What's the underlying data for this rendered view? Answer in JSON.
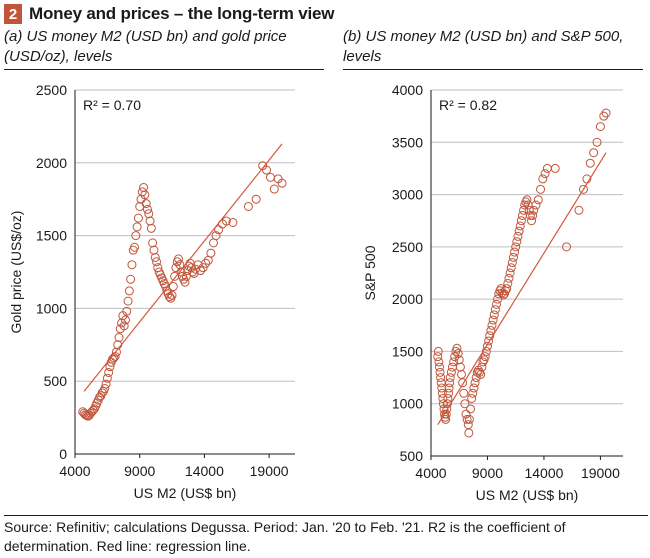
{
  "figure": {
    "number": "2",
    "title": "Money and prices – the long-term view",
    "source_note": "Source: Refinitiv; calculations Degussa. Period: Jan. '20 to Feb. '21. R2 is the coefficient of determination. Red line: regression line.",
    "colors": {
      "badge": "#c0553a",
      "marker": "#c0553a",
      "regression": "#d4583a",
      "grid": "#bfbfbf"
    }
  },
  "chart_data": [
    {
      "type": "scatter",
      "subtitle": "(a) US money M2 (USD bn) and gold price (USD/oz), levels",
      "xlabel": "US M2  (US$ bn)",
      "ylabel": "Gold price (US$/oz)",
      "xlim": [
        4000,
        21000
      ],
      "ylim": [
        0,
        2500
      ],
      "xticks": [
        "4000",
        "9000",
        "14000",
        "19000"
      ],
      "yticks": [
        "0",
        "500",
        "1000",
        "1500",
        "2000",
        "2500"
      ],
      "grid": "horizontal",
      "annotation": "R² = 0.70",
      "regression": [
        [
          4700,
          430
        ],
        [
          20000,
          2130
        ]
      ],
      "points": [
        [
          4600,
          290
        ],
        [
          4700,
          280
        ],
        [
          4800,
          270
        ],
        [
          4900,
          265
        ],
        [
          5000,
          260
        ],
        [
          5100,
          265
        ],
        [
          5200,
          280
        ],
        [
          5300,
          290
        ],
        [
          5400,
          300
        ],
        [
          5500,
          310
        ],
        [
          5600,
          330
        ],
        [
          5700,
          350
        ],
        [
          5800,
          370
        ],
        [
          5900,
          390
        ],
        [
          6000,
          400
        ],
        [
          6100,
          420
        ],
        [
          6200,
          430
        ],
        [
          6300,
          450
        ],
        [
          6400,
          480
        ],
        [
          6500,
          520
        ],
        [
          6600,
          560
        ],
        [
          6700,
          600
        ],
        [
          6800,
          630
        ],
        [
          6900,
          650
        ],
        [
          7000,
          660
        ],
        [
          7100,
          670
        ],
        [
          7200,
          700
        ],
        [
          7300,
          750
        ],
        [
          7400,
          800
        ],
        [
          7500,
          860
        ],
        [
          7600,
          900
        ],
        [
          7700,
          950
        ],
        [
          7800,
          880
        ],
        [
          7900,
          920
        ],
        [
          8000,
          980
        ],
        [
          8100,
          1050
        ],
        [
          8200,
          1120
        ],
        [
          8300,
          1200
        ],
        [
          8400,
          1300
        ],
        [
          8500,
          1400
        ],
        [
          8600,
          1420
        ],
        [
          8700,
          1500
        ],
        [
          8800,
          1560
        ],
        [
          8900,
          1620
        ],
        [
          9000,
          1700
        ],
        [
          9100,
          1750
        ],
        [
          9200,
          1800
        ],
        [
          9300,
          1830
        ],
        [
          9400,
          1780
        ],
        [
          9500,
          1720
        ],
        [
          9600,
          1680
        ],
        [
          9700,
          1650
        ],
        [
          9800,
          1600
        ],
        [
          9900,
          1550
        ],
        [
          10000,
          1450
        ],
        [
          10100,
          1400
        ],
        [
          10200,
          1350
        ],
        [
          10300,
          1320
        ],
        [
          10400,
          1280
        ],
        [
          10500,
          1250
        ],
        [
          10600,
          1230
        ],
        [
          10700,
          1210
        ],
        [
          10800,
          1190
        ],
        [
          10900,
          1170
        ],
        [
          11000,
          1150
        ],
        [
          11100,
          1120
        ],
        [
          11200,
          1100
        ],
        [
          11300,
          1080
        ],
        [
          11400,
          1070
        ],
        [
          11500,
          1090
        ],
        [
          11600,
          1150
        ],
        [
          11700,
          1220
        ],
        [
          11800,
          1280
        ],
        [
          11900,
          1320
        ],
        [
          12000,
          1340
        ],
        [
          12100,
          1300
        ],
        [
          12200,
          1250
        ],
        [
          12300,
          1220
        ],
        [
          12400,
          1200
        ],
        [
          12500,
          1180
        ],
        [
          12600,
          1220
        ],
        [
          12700,
          1260
        ],
        [
          12800,
          1290
        ],
        [
          12900,
          1310
        ],
        [
          13000,
          1280
        ],
        [
          13100,
          1250
        ],
        [
          13200,
          1240
        ],
        [
          13300,
          1270
        ],
        [
          13500,
          1300
        ],
        [
          13700,
          1260
        ],
        [
          13900,
          1280
        ],
        [
          14100,
          1310
        ],
        [
          14300,
          1330
        ],
        [
          14500,
          1380
        ],
        [
          14700,
          1450
        ],
        [
          14900,
          1500
        ],
        [
          15100,
          1540
        ],
        [
          15400,
          1580
        ],
        [
          15700,
          1600
        ],
        [
          16200,
          1590
        ],
        [
          17400,
          1700
        ],
        [
          18000,
          1750
        ],
        [
          18500,
          1980
        ],
        [
          18800,
          1950
        ],
        [
          19100,
          1900
        ],
        [
          19400,
          1820
        ],
        [
          19700,
          1890
        ],
        [
          20000,
          1860
        ]
      ]
    },
    {
      "type": "scatter",
      "subtitle": "(b) US money M2 (USD bn) and S&P 500, levels",
      "xlabel": "US M2  (US$ bn)",
      "ylabel": "S&P 500",
      "xlim": [
        4000,
        21000
      ],
      "ylim": [
        500,
        4000
      ],
      "xticks": [
        "4000",
        "9000",
        "14000",
        "19000"
      ],
      "yticks": [
        "500",
        "1000",
        "1500",
        "2000",
        "2500",
        "3000",
        "3500",
        "4000"
      ],
      "grid": "horizontal",
      "annotation": "R² = 0.82",
      "regression": [
        [
          4600,
          800
        ],
        [
          19500,
          3400
        ]
      ],
      "points": [
        [
          4600,
          1450
        ],
        [
          4650,
          1500
        ],
        [
          4700,
          1400
        ],
        [
          4750,
          1350
        ],
        [
          4800,
          1300
        ],
        [
          4850,
          1250
        ],
        [
          4900,
          1200
        ],
        [
          4950,
          1150
        ],
        [
          5000,
          1100
        ],
        [
          5050,
          1050
        ],
        [
          5100,
          1000
        ],
        [
          5150,
          950
        ],
        [
          5200,
          900
        ],
        [
          5250,
          870
        ],
        [
          5300,
          850
        ],
        [
          5350,
          900
        ],
        [
          5400,
          950
        ],
        [
          5450,
          1000
        ],
        [
          5500,
          1050
        ],
        [
          5550,
          1100
        ],
        [
          5600,
          1150
        ],
        [
          5650,
          1200
        ],
        [
          5700,
          1250
        ],
        [
          5800,
          1300
        ],
        [
          5900,
          1350
        ],
        [
          6000,
          1400
        ],
        [
          6100,
          1450
        ],
        [
          6200,
          1500
        ],
        [
          6300,
          1530
        ],
        [
          6400,
          1480
        ],
        [
          6500,
          1420
        ],
        [
          6600,
          1350
        ],
        [
          6700,
          1280
        ],
        [
          6800,
          1200
        ],
        [
          6900,
          1100
        ],
        [
          7000,
          1000
        ],
        [
          7100,
          900
        ],
        [
          7200,
          850
        ],
        [
          7300,
          800
        ],
        [
          7350,
          720
        ],
        [
          7400,
          850
        ],
        [
          7500,
          950
        ],
        [
          7600,
          1050
        ],
        [
          7700,
          1100
        ],
        [
          7800,
          1150
        ],
        [
          7900,
          1200
        ],
        [
          8000,
          1250
        ],
        [
          8100,
          1300
        ],
        [
          8200,
          1320
        ],
        [
          8300,
          1300
        ],
        [
          8400,
          1280
        ],
        [
          8500,
          1350
        ],
        [
          8600,
          1400
        ],
        [
          8700,
          1420
        ],
        [
          8800,
          1450
        ],
        [
          8900,
          1500
        ],
        [
          9000,
          1550
        ],
        [
          9100,
          1600
        ],
        [
          9200,
          1650
        ],
        [
          9300,
          1700
        ],
        [
          9400,
          1750
        ],
        [
          9500,
          1800
        ],
        [
          9600,
          1850
        ],
        [
          9700,
          1900
        ],
        [
          9800,
          1950
        ],
        [
          9900,
          2000
        ],
        [
          10000,
          2050
        ],
        [
          10100,
          2080
        ],
        [
          10200,
          2100
        ],
        [
          10300,
          2060
        ],
        [
          10400,
          2040
        ],
        [
          10500,
          2050
        ],
        [
          10600,
          2080
        ],
        [
          10700,
          2100
        ],
        [
          10800,
          2150
        ],
        [
          10900,
          2200
        ],
        [
          11000,
          2250
        ],
        [
          11100,
          2300
        ],
        [
          11200,
          2350
        ],
        [
          11300,
          2400
        ],
        [
          11400,
          2450
        ],
        [
          11500,
          2500
        ],
        [
          11600,
          2550
        ],
        [
          11700,
          2600
        ],
        [
          11800,
          2650
        ],
        [
          11900,
          2700
        ],
        [
          12000,
          2750
        ],
        [
          12100,
          2800
        ],
        [
          12200,
          2850
        ],
        [
          12300,
          2900
        ],
        [
          12400,
          2930
        ],
        [
          12500,
          2950
        ],
        [
          12600,
          2900
        ],
        [
          12700,
          2850
        ],
        [
          12800,
          2800
        ],
        [
          12900,
          2750
        ],
        [
          13000,
          2800
        ],
        [
          13100,
          2850
        ],
        [
          13300,
          2900
        ],
        [
          13500,
          2950
        ],
        [
          13700,
          3050
        ],
        [
          13900,
          3150
        ],
        [
          14100,
          3200
        ],
        [
          14300,
          3250
        ],
        [
          15000,
          3250
        ],
        [
          16000,
          2500
        ],
        [
          17100,
          2850
        ],
        [
          17500,
          3050
        ],
        [
          17800,
          3150
        ],
        [
          18100,
          3300
        ],
        [
          18400,
          3400
        ],
        [
          18700,
          3500
        ],
        [
          19000,
          3650
        ],
        [
          19300,
          3750
        ],
        [
          19500,
          3780
        ]
      ]
    }
  ]
}
